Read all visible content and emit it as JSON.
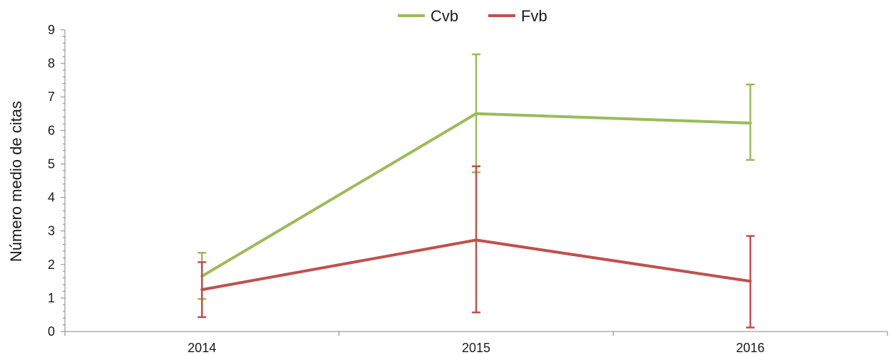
{
  "chart_data": {
    "type": "line",
    "title": "",
    "xlabel": "",
    "ylabel": "Número medio de citas",
    "categories": [
      "2014",
      "2015",
      "2016"
    ],
    "ylim": [
      0,
      9
    ],
    "yticks": [
      "0",
      "1",
      "2",
      "3",
      "4",
      "5",
      "6",
      "7",
      "8",
      "9"
    ],
    "grid": false,
    "legend_position": "top",
    "series": [
      {
        "name": "Cvb",
        "color": "#9bbb59",
        "values": [
          1.65,
          6.5,
          6.22
        ],
        "error_low": [
          0.97,
          4.75,
          5.12
        ],
        "error_high": [
          2.35,
          8.27,
          7.37
        ]
      },
      {
        "name": "Fvb",
        "color": "#c0504d",
        "values": [
          1.25,
          2.73,
          1.5
        ],
        "error_low": [
          0.43,
          0.57,
          0.12
        ],
        "error_high": [
          2.07,
          4.93,
          2.85
        ]
      }
    ]
  }
}
